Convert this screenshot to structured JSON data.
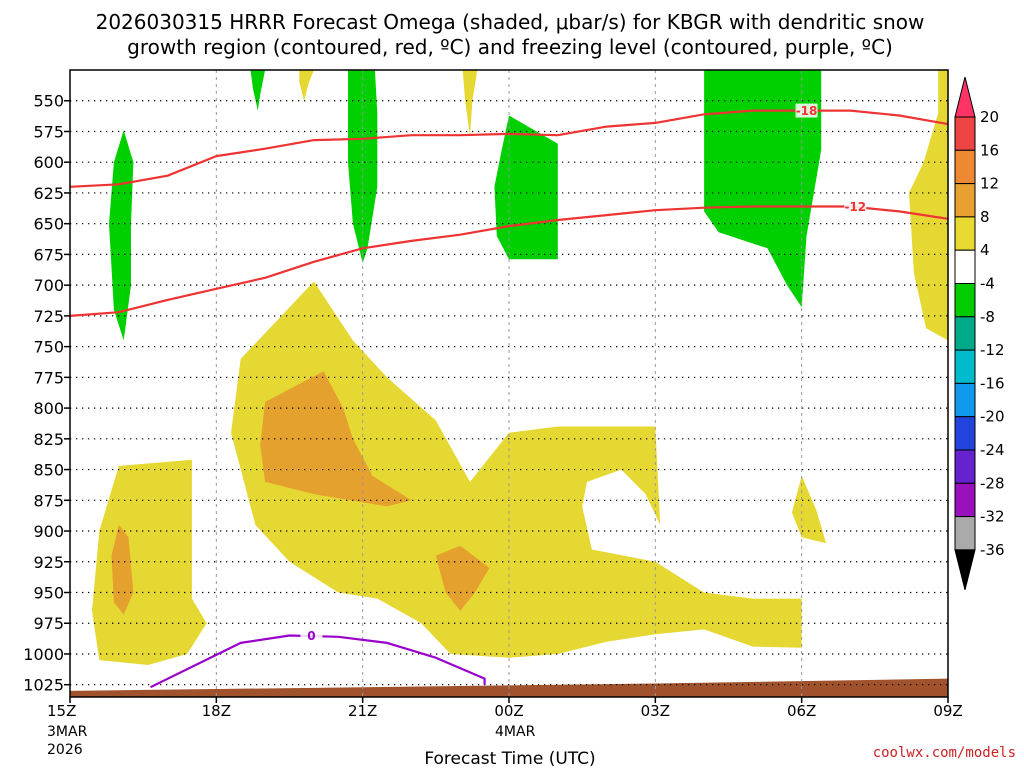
{
  "chart_data": {
    "type": "time-height",
    "title_line1": "2026030315 HRRR Forecast Omega (shaded, μbar/s) for KBGR with dendritic snow",
    "title_line2": "growth region (contoured, red, ºC) and freezing level (contoured, purple, ºC)",
    "xlabel": "Forecast Time (UTC)",
    "credit": "coolwx.com/models",
    "x_range_hours": [
      0,
      18
    ],
    "x_ticks": [
      {
        "hour": 0,
        "label": "15Z",
        "sub1": "3MAR",
        "sub2": "2026"
      },
      {
        "hour": 3,
        "label": "18Z",
        "sub1": "",
        "sub2": ""
      },
      {
        "hour": 6,
        "label": "21Z",
        "sub1": "",
        "sub2": ""
      },
      {
        "hour": 9,
        "label": "00Z",
        "sub1": "4MAR",
        "sub2": ""
      },
      {
        "hour": 12,
        "label": "03Z",
        "sub1": "",
        "sub2": ""
      },
      {
        "hour": 15,
        "label": "06Z",
        "sub1": "",
        "sub2": ""
      },
      {
        "hour": 18,
        "label": "09Z",
        "sub1": "",
        "sub2": ""
      }
    ],
    "y_range_hpa": [
      1035,
      525
    ],
    "y_ticks": [
      "550",
      "575",
      "600",
      "625",
      "650",
      "675",
      "700",
      "725",
      "750",
      "775",
      "800",
      "825",
      "850",
      "875",
      "900",
      "925",
      "950",
      "975",
      "1000",
      "1025"
    ],
    "colorbar": {
      "labels": [
        "20",
        "16",
        "12",
        "8",
        "4",
        "-4",
        "-8",
        "-12",
        "-16",
        "-20",
        "-24",
        "-28",
        "-32",
        "-36"
      ],
      "colors": [
        "#ff3366",
        "#ee4444",
        "#ee8833",
        "#e8a030",
        "#e8da30",
        "#ffffff",
        "#00cc00",
        "#00aa88",
        "#00bbcc",
        "#1199ee",
        "#2244dd",
        "#6622cc",
        "#9911bb",
        "#aaaaaa",
        "#000000"
      ]
    },
    "colors": {
      "yellow": "#e6d832",
      "orange": "#e4a12e",
      "green": "#00d000",
      "dgz": "#ee3333",
      "freezing": "#9900cc",
      "ground": "#a0522d"
    },
    "contour_labels": {
      "dgz_upper": "-18",
      "dgz_lower": "-12",
      "freezing": "0"
    },
    "dgz_upper_contour": [
      [
        0,
        620
      ],
      [
        1,
        618
      ],
      [
        2,
        611
      ],
      [
        3,
        595
      ],
      [
        4,
        589
      ],
      [
        5,
        582
      ],
      [
        6,
        581
      ],
      [
        7,
        578
      ],
      [
        8,
        578
      ],
      [
        9,
        577
      ],
      [
        10,
        578
      ],
      [
        11,
        571
      ],
      [
        12,
        568
      ],
      [
        13,
        561
      ],
      [
        14,
        558
      ],
      [
        15,
        558
      ],
      [
        16,
        558
      ],
      [
        17,
        562
      ],
      [
        18,
        569
      ]
    ],
    "dgz_lower_contour": [
      [
        0,
        725
      ],
      [
        1,
        722
      ],
      [
        2,
        712
      ],
      [
        3,
        703
      ],
      [
        4,
        694
      ],
      [
        5,
        681
      ],
      [
        6,
        670
      ],
      [
        7,
        664
      ],
      [
        8,
        659
      ],
      [
        9,
        652
      ],
      [
        10,
        647
      ],
      [
        11,
        643
      ],
      [
        12,
        639
      ],
      [
        13,
        637
      ],
      [
        14,
        636
      ],
      [
        15,
        636
      ],
      [
        16,
        636
      ],
      [
        17,
        640
      ],
      [
        18,
        646
      ]
    ],
    "freezing_level_contour": [
      [
        1.65,
        1027
      ],
      [
        3.5,
        991
      ],
      [
        4.5,
        985
      ],
      [
        5.5,
        986
      ],
      [
        6.5,
        991
      ],
      [
        7.5,
        1003
      ],
      [
        8.5,
        1020
      ],
      [
        8.5,
        1025
      ]
    ],
    "ground_pressure": [
      [
        0,
        1030
      ],
      [
        6,
        1027
      ],
      [
        12,
        1024
      ],
      [
        18,
        1020
      ]
    ],
    "omega_regions": [
      {
        "name": "yellow-upper-left",
        "level": "4 to 8",
        "color": "yellow",
        "points": [
          [
            4.7,
            525
          ],
          [
            5.0,
            525
          ],
          [
            4.9,
            535
          ],
          [
            4.8,
            550
          ],
          [
            4.7,
            535
          ]
        ]
      },
      {
        "name": "yellow-column-2330z",
        "level": "4 to 8",
        "color": "yellow",
        "points": [
          [
            8.05,
            525
          ],
          [
            8.35,
            525
          ],
          [
            8.25,
            550
          ],
          [
            8.2,
            579
          ],
          [
            8.1,
            550
          ]
        ]
      },
      {
        "name": "yellow-right-edge",
        "level": "4 to 8",
        "color": "yellow",
        "points": [
          [
            17.8,
            525
          ],
          [
            18.0,
            525
          ],
          [
            18.0,
            745
          ],
          [
            17.55,
            735
          ],
          [
            17.3,
            690
          ],
          [
            17.2,
            625
          ],
          [
            17.5,
            600
          ],
          [
            17.8,
            560
          ]
        ]
      },
      {
        "name": "yellow-left-lowlevel",
        "level": "4 to 8",
        "color": "yellow",
        "points": [
          [
            1.0,
            847
          ],
          [
            2.5,
            842
          ],
          [
            2.5,
            955
          ],
          [
            2.8,
            975
          ],
          [
            2.4,
            1000
          ],
          [
            1.6,
            1009
          ],
          [
            0.6,
            1005
          ],
          [
            0.45,
            965
          ],
          [
            0.6,
            900
          ]
        ]
      },
      {
        "name": "yellow-main",
        "level": "4 to 8",
        "color": "yellow",
        "points": [
          [
            3.5,
            760
          ],
          [
            5.0,
            697
          ],
          [
            5.8,
            745
          ],
          [
            6.5,
            775
          ],
          [
            7.5,
            810
          ],
          [
            8.2,
            860
          ],
          [
            9.0,
            820
          ],
          [
            10.0,
            815
          ],
          [
            12.0,
            815
          ],
          [
            12.1,
            895
          ],
          [
            11.8,
            870
          ],
          [
            11.3,
            850
          ],
          [
            10.6,
            860
          ],
          [
            10.5,
            880
          ],
          [
            10.7,
            915
          ],
          [
            12.0,
            925
          ],
          [
            13.0,
            950
          ],
          [
            14.0,
            955
          ],
          [
            15.0,
            955
          ],
          [
            15.0,
            995
          ],
          [
            14.0,
            994
          ],
          [
            13.0,
            980
          ],
          [
            12.0,
            984
          ],
          [
            11.0,
            990
          ],
          [
            10.0,
            1000
          ],
          [
            9.0,
            1003
          ],
          [
            7.8,
            1000
          ],
          [
            7.2,
            975
          ],
          [
            6.3,
            955
          ],
          [
            5.5,
            950
          ],
          [
            4.5,
            925
          ],
          [
            3.8,
            895
          ],
          [
            3.3,
            820
          ]
        ]
      },
      {
        "name": "yellow-small-0530z",
        "level": "4 to 8",
        "color": "yellow",
        "points": [
          [
            15.0,
            855
          ],
          [
            15.3,
            883
          ],
          [
            15.5,
            910
          ],
          [
            15.0,
            905
          ],
          [
            14.8,
            885
          ]
        ]
      },
      {
        "name": "orange-left",
        "level": "8 to 12",
        "color": "orange",
        "points": [
          [
            1.0,
            895
          ],
          [
            1.2,
            905
          ],
          [
            1.3,
            950
          ],
          [
            1.1,
            968
          ],
          [
            0.9,
            958
          ],
          [
            0.85,
            920
          ]
        ]
      },
      {
        "name": "orange-mid",
        "level": "8 to 12",
        "color": "orange",
        "points": [
          [
            4.0,
            795
          ],
          [
            5.2,
            770
          ],
          [
            5.6,
            800
          ],
          [
            5.8,
            825
          ],
          [
            6.2,
            855
          ],
          [
            7.0,
            875
          ],
          [
            6.5,
            880
          ],
          [
            5.0,
            870
          ],
          [
            4.0,
            860
          ],
          [
            3.9,
            830
          ]
        ]
      },
      {
        "name": "orange-lower",
        "level": "8 to 12",
        "color": "orange",
        "points": [
          [
            7.5,
            920
          ],
          [
            8.0,
            912
          ],
          [
            8.6,
            930
          ],
          [
            8.3,
            950
          ],
          [
            8.0,
            965
          ],
          [
            7.7,
            950
          ]
        ]
      },
      {
        "name": "green-1530z",
        "level": "-4 to -8",
        "color": "green",
        "points": [
          [
            1.1,
            574
          ],
          [
            1.3,
            600
          ],
          [
            1.25,
            650
          ],
          [
            1.25,
            700
          ],
          [
            1.1,
            745
          ],
          [
            0.9,
            720
          ],
          [
            0.8,
            650
          ],
          [
            0.9,
            600
          ]
        ]
      },
      {
        "name": "green-1830z",
        "level": "-4 to -8",
        "color": "green",
        "points": [
          [
            3.7,
            525
          ],
          [
            4.0,
            525
          ],
          [
            3.9,
            545
          ],
          [
            3.85,
            558
          ],
          [
            3.75,
            540
          ]
        ]
      },
      {
        "name": "green-2030z",
        "level": "-4 to -8",
        "color": "green",
        "points": [
          [
            5.7,
            525
          ],
          [
            6.25,
            525
          ],
          [
            6.3,
            560
          ],
          [
            6.3,
            620
          ],
          [
            6.1,
            670
          ],
          [
            6.0,
            682
          ],
          [
            5.8,
            650
          ],
          [
            5.7,
            600
          ],
          [
            5.7,
            560
          ]
        ]
      },
      {
        "name": "green-0000z",
        "level": "-4 to -8",
        "color": "green",
        "points": [
          [
            9.0,
            562
          ],
          [
            10.0,
            585
          ],
          [
            10.0,
            679
          ],
          [
            9.0,
            679
          ],
          [
            8.75,
            660
          ],
          [
            8.7,
            620
          ],
          [
            8.85,
            590
          ]
        ]
      },
      {
        "name": "green-0430z",
        "level": "-4 to -8",
        "color": "green",
        "points": [
          [
            13.0,
            525
          ],
          [
            15.4,
            525
          ],
          [
            15.4,
            590
          ],
          [
            15.1,
            660
          ],
          [
            15.0,
            718
          ],
          [
            14.7,
            700
          ],
          [
            14.3,
            670
          ],
          [
            13.3,
            657
          ],
          [
            13.0,
            640
          ],
          [
            13.0,
            560
          ]
        ]
      }
    ]
  }
}
